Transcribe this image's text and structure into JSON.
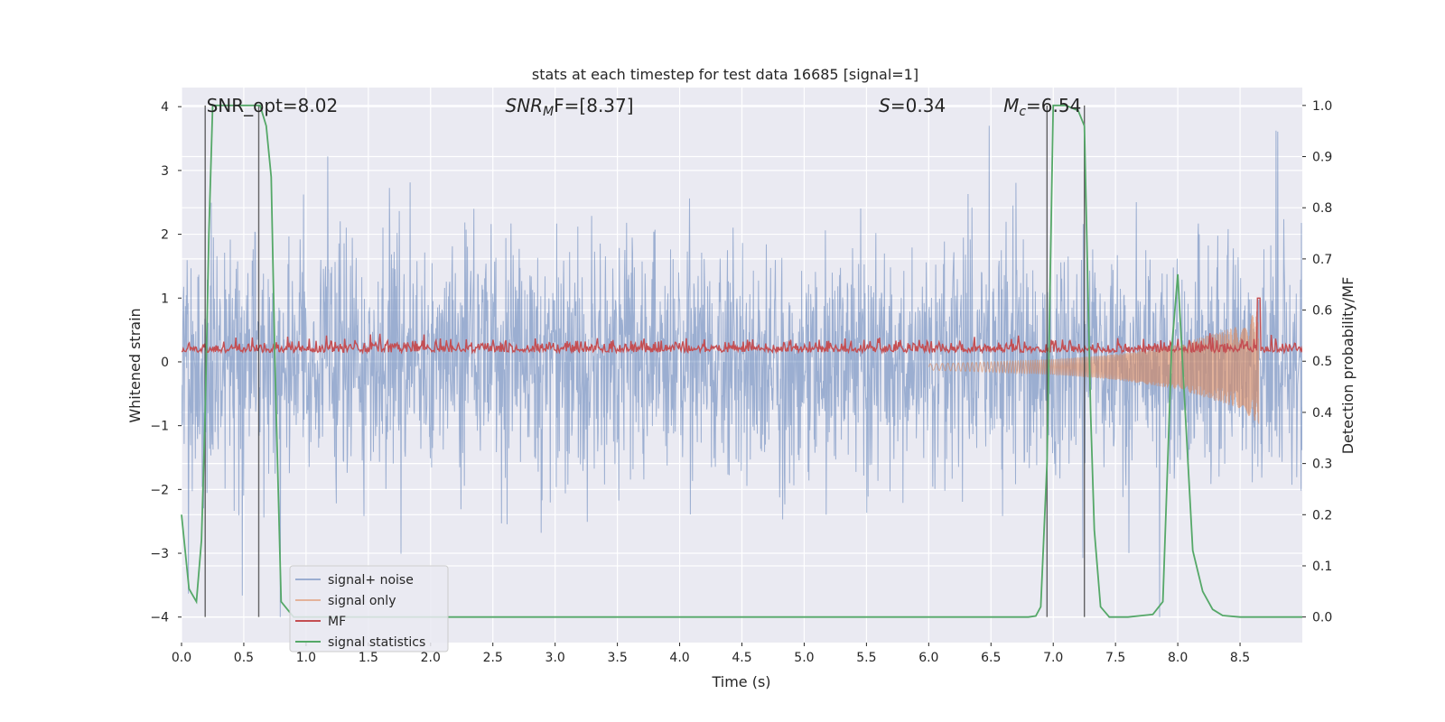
{
  "chart_data": {
    "type": "line",
    "title": "stats at each timestep for test data 16685 [signal=1]",
    "xlabel": "Time (s)",
    "ylabel_left": "Whitened strain",
    "ylabel_right": "Detection probability/MF",
    "xlim": [
      0.0,
      9.0
    ],
    "ylim_left": [
      -4.4,
      4.3
    ],
    "ylim_right": [
      -0.05,
      1.035
    ],
    "x_ticks": [
      0.0,
      0.5,
      1.0,
      1.5,
      2.0,
      2.5,
      3.0,
      3.5,
      4.0,
      4.5,
      5.0,
      5.5,
      6.0,
      6.5,
      7.0,
      7.5,
      8.0,
      8.5
    ],
    "x_tick_labels": [
      "0.0",
      "0.5",
      "1.0",
      "1.5",
      "2.0",
      "2.5",
      "3.0",
      "3.5",
      "4.0",
      "4.5",
      "5.0",
      "5.5",
      "6.0",
      "6.5",
      "7.0",
      "7.5",
      "8.0",
      "8.5"
    ],
    "y_left_ticks": [
      4,
      3,
      2,
      1,
      0,
      -1,
      -2,
      -3,
      -4
    ],
    "y_left_tick_labels": [
      "4",
      "3",
      "2",
      "1",
      "0",
      "−1",
      "−2",
      "−3",
      "−4"
    ],
    "y_right_ticks": [
      1.0,
      0.9,
      0.8,
      0.7,
      0.6,
      0.5,
      0.4,
      0.3,
      0.2,
      0.1,
      0.0
    ],
    "y_right_tick_labels": [
      "1.0",
      "0.9",
      "0.8",
      "0.7",
      "0.6",
      "0.5",
      "0.4",
      "0.3",
      "0.2",
      "0.1",
      "0.0"
    ],
    "grid": true,
    "legend_position": "lower-left",
    "series": [
      {
        "name": "signal+ noise",
        "color": "#4c72b0",
        "axis": "left",
        "style": "noise",
        "typical_range": [
          -1.5,
          1.5
        ],
        "extreme_range": [
          -4.0,
          4.0
        ]
      },
      {
        "name": "signal only",
        "color": "#dd8452",
        "axis": "left",
        "style": "chirp",
        "x": [
          6.0,
          6.5,
          7.0,
          7.5,
          8.0,
          8.5,
          8.65
        ],
        "amplitude": [
          0.05,
          0.08,
          0.12,
          0.2,
          0.35,
          0.65,
          0.9
        ]
      },
      {
        "name": "MF",
        "color": "#c44e52",
        "axis": "left",
        "style": "mf",
        "baseline": 0.15,
        "range": [
          0.05,
          0.45
        ],
        "peak": {
          "x": 8.65,
          "y": 1.0
        }
      },
      {
        "name": "signal statistics",
        "color": "#55a868",
        "axis": "right",
        "x": [
          0.0,
          0.06,
          0.12,
          0.16,
          0.19,
          0.22,
          0.25,
          0.3,
          0.4,
          0.5,
          0.56,
          0.6,
          0.63,
          0.68,
          0.72,
          0.75,
          0.8,
          0.9,
          6.8,
          6.86,
          6.9,
          6.95,
          7.0,
          7.1,
          7.2,
          7.25,
          7.3,
          7.33,
          7.38,
          7.45,
          7.6,
          7.8,
          7.88,
          7.95,
          8.0,
          8.06,
          8.12,
          8.2,
          8.28,
          8.36,
          8.5,
          9.0
        ],
        "values": [
          0.2,
          0.055,
          0.03,
          0.15,
          0.4,
          0.75,
          1.0,
          1.0,
          1.0,
          1.0,
          1.0,
          1.0,
          1.0,
          0.96,
          0.86,
          0.5,
          0.03,
          0.0,
          0.0,
          0.002,
          0.02,
          0.3,
          1.0,
          1.0,
          0.99,
          0.96,
          0.4,
          0.17,
          0.02,
          0.0,
          0.0,
          0.005,
          0.03,
          0.52,
          0.67,
          0.4,
          0.13,
          0.05,
          0.015,
          0.003,
          0.0,
          0.0
        ]
      }
    ],
    "vertical_lines": [
      0.19,
      0.62,
      6.95,
      7.25
    ],
    "annotations": [
      {
        "text": "SNR_opt=8.02",
        "x": 0.2
      },
      {
        "text_parts": [
          "SNR",
          "M",
          "F=[8.37]"
        ],
        "x": 2.6
      },
      {
        "text_parts": [
          "S",
          "=0.34"
        ],
        "x": 5.6
      },
      {
        "text_parts": [
          "M",
          "c",
          "=6.54"
        ],
        "x": 6.6
      }
    ]
  }
}
